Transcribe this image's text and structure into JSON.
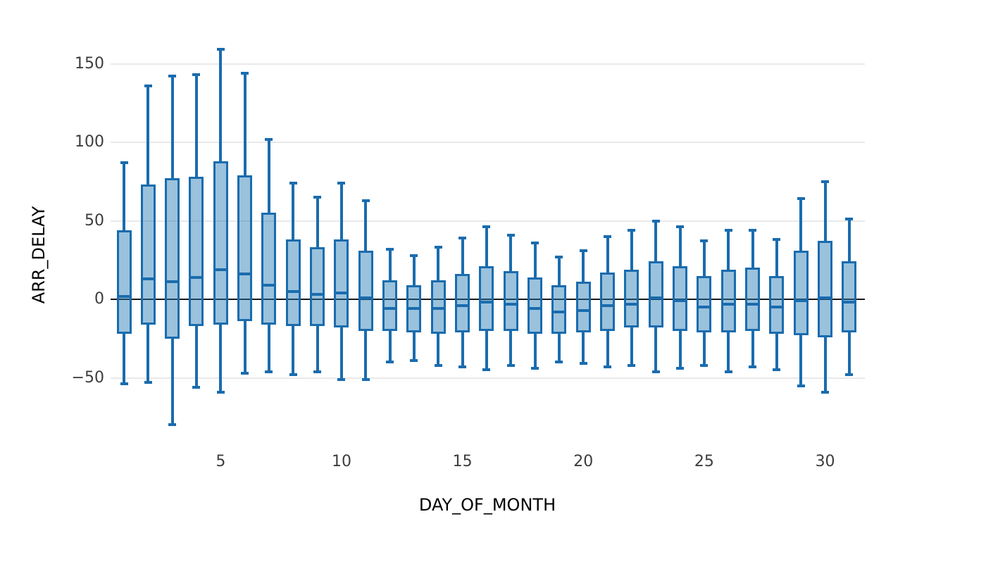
{
  "page": {
    "background": "#ffffff"
  },
  "chart_data": {
    "type": "box",
    "title": "",
    "xlabel": "DAY_OF_MONTH",
    "ylabel": "ARR_DELAY",
    "x_ticks": [
      5,
      10,
      15,
      20,
      25,
      30
    ],
    "y_ticks": [
      150,
      100,
      50,
      0,
      -50
    ],
    "x_range_days": [
      1,
      31
    ],
    "ylim": [
      -85,
      165
    ],
    "grid": "horizontal",
    "zero_line": true,
    "legend_position": "none",
    "colors": {
      "box_line": "#1a6cae",
      "box_fill": "rgba(31,119,180,0.45)",
      "zero_line": "#1a1a1a",
      "grid_line": "#e9e9e9",
      "tick_text": "#3d3d3d",
      "axis_title_text": "#3d3d3d"
    },
    "series": [
      {
        "day": 1,
        "low": -54,
        "q1": -22,
        "median": 2,
        "q3": 44,
        "high": 87
      },
      {
        "day": 2,
        "low": -53,
        "q1": -16,
        "median": 13,
        "q3": 73,
        "high": 136
      },
      {
        "day": 3,
        "low": -80,
        "q1": -25,
        "median": 11,
        "q3": 77,
        "high": 142
      },
      {
        "day": 4,
        "low": -56,
        "q1": -17,
        "median": 14,
        "q3": 78,
        "high": 143
      },
      {
        "day": 5,
        "low": -59,
        "q1": -16,
        "median": 19,
        "q3": 88,
        "high": 159
      },
      {
        "day": 6,
        "low": -47,
        "q1": -14,
        "median": 16,
        "q3": 79,
        "high": 144
      },
      {
        "day": 7,
        "low": -46,
        "q1": -16,
        "median": 9,
        "q3": 55,
        "high": 102
      },
      {
        "day": 8,
        "low": -48,
        "q1": -17,
        "median": 5,
        "q3": 38,
        "high": 74
      },
      {
        "day": 9,
        "low": -46,
        "q1": -17,
        "median": 3,
        "q3": 33,
        "high": 65
      },
      {
        "day": 10,
        "low": -51,
        "q1": -18,
        "median": 4,
        "q3": 38,
        "high": 74
      },
      {
        "day": 11,
        "low": -51,
        "q1": -20,
        "median": 1,
        "q3": 31,
        "high": 63
      },
      {
        "day": 12,
        "low": -40,
        "q1": -20,
        "median": -6,
        "q3": 12,
        "high": 32
      },
      {
        "day": 13,
        "low": -39,
        "q1": -21,
        "median": -6,
        "q3": 9,
        "high": 28
      },
      {
        "day": 14,
        "low": -42,
        "q1": -22,
        "median": -6,
        "q3": 12,
        "high": 33
      },
      {
        "day": 15,
        "low": -43,
        "q1": -21,
        "median": -4,
        "q3": 16,
        "high": 39
      },
      {
        "day": 16,
        "low": -45,
        "q1": -20,
        "median": -2,
        "q3": 21,
        "high": 46
      },
      {
        "day": 17,
        "low": -42,
        "q1": -20,
        "median": -3,
        "q3": 18,
        "high": 41
      },
      {
        "day": 18,
        "low": -44,
        "q1": -22,
        "median": -6,
        "q3": 14,
        "high": 36
      },
      {
        "day": 19,
        "low": -40,
        "q1": -22,
        "median": -8,
        "q3": 9,
        "high": 27
      },
      {
        "day": 20,
        "low": -41,
        "q1": -21,
        "median": -7,
        "q3": 11,
        "high": 31
      },
      {
        "day": 21,
        "low": -43,
        "q1": -20,
        "median": -4,
        "q3": 17,
        "high": 40
      },
      {
        "day": 22,
        "low": -42,
        "q1": -18,
        "median": -3,
        "q3": 19,
        "high": 44
      },
      {
        "day": 23,
        "low": -46,
        "q1": -18,
        "median": 1,
        "q3": 24,
        "high": 50
      },
      {
        "day": 24,
        "low": -44,
        "q1": -20,
        "median": -1,
        "q3": 21,
        "high": 46
      },
      {
        "day": 25,
        "low": -42,
        "q1": -21,
        "median": -5,
        "q3": 15,
        "high": 37
      },
      {
        "day": 26,
        "low": -46,
        "q1": -21,
        "median": -3,
        "q3": 19,
        "high": 44
      },
      {
        "day": 27,
        "low": -43,
        "q1": -20,
        "median": -3,
        "q3": 20,
        "high": 44
      },
      {
        "day": 28,
        "low": -45,
        "q1": -22,
        "median": -5,
        "q3": 15,
        "high": 38
      },
      {
        "day": 29,
        "low": -55,
        "q1": -23,
        "median": -1,
        "q3": 31,
        "high": 64
      },
      {
        "day": 30,
        "low": -59,
        "q1": -24,
        "median": 1,
        "q3": 37,
        "high": 75
      },
      {
        "day": 31,
        "low": -48,
        "q1": -21,
        "median": -2,
        "q3": 24,
        "high": 51
      }
    ]
  }
}
